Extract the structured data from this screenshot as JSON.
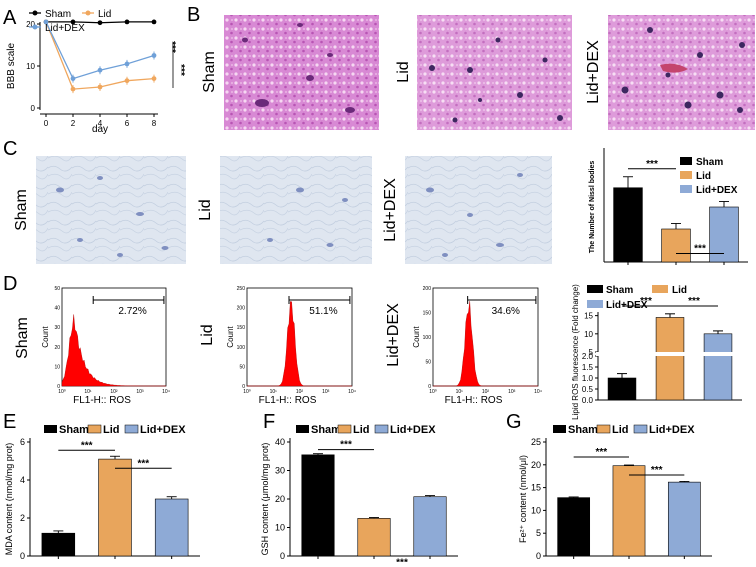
{
  "panels": {
    "A": "A",
    "B": "B",
    "C": "C",
    "D": "D",
    "E": "E",
    "F": "F",
    "G": "G"
  },
  "groups": {
    "sham": "Sham",
    "lid": "Lid",
    "dex": "Lid+DEX"
  },
  "colors": {
    "sham": "#000000",
    "lid": "#e8a55c",
    "dex": "#8eaad6",
    "bbb_sham": "#000000",
    "bbb_lid": "#f0a75e",
    "bbb_dex": "#6fa0d8",
    "flow": "#ff0000",
    "he": "#c870c4",
    "nissl": "#c9d6e8"
  },
  "flow": {
    "xlabel": "FL1-H:: ROS",
    "ylabel": "Count",
    "percents": [
      "2.72%",
      "51.1%",
      "34.6%"
    ],
    "yticks": [
      [
        "0",
        "10",
        "20",
        "30",
        "40",
        "50"
      ],
      [
        "0",
        "50",
        "100",
        "150",
        "200",
        "250"
      ],
      [
        "0",
        "50",
        "100",
        "150",
        "200"
      ]
    ],
    "xticks": [
      "10⁰",
      "10¹",
      "10²",
      "10³",
      "10⁴"
    ]
  },
  "significance": "***",
  "chart_data": [
    {
      "id": "A",
      "type": "line",
      "title": "",
      "xlabel": "day",
      "ylabel": "BBB scale",
      "x": [
        0,
        2,
        4,
        6,
        8
      ],
      "xlim": [
        0,
        8
      ],
      "ylim": [
        0,
        20
      ],
      "yticks": [
        0,
        10,
        20
      ],
      "series": [
        {
          "name": "Sham",
          "values": [
            20.5,
            20.5,
            20.3,
            20.5,
            20.5
          ]
        },
        {
          "name": "Lid",
          "values": [
            20.5,
            4.5,
            5.0,
            6.5,
            7.0
          ]
        },
        {
          "name": "Lid+DEX",
          "values": [
            20.5,
            7.0,
            9.0,
            10.5,
            12.5
          ]
        }
      ],
      "annotations": [
        "***",
        "***"
      ]
    },
    {
      "id": "C",
      "type": "bar",
      "title": "",
      "xlabel": "",
      "ylabel": "The Number of Nissl bodies",
      "categories": [
        "Sham",
        "Lid",
        "Lid+DEX"
      ],
      "values": [
        27,
        12,
        20
      ],
      "errors": [
        4,
        2,
        2
      ],
      "ylim": [
        0,
        40
      ],
      "annotations": [
        "***",
        "***"
      ]
    },
    {
      "id": "D",
      "type": "bar",
      "title": "",
      "xlabel": "",
      "ylabel": "Lipid ROS fluorescence (Fold change)",
      "categories": [
        "Sham",
        "Lid",
        "Lid+DEX"
      ],
      "values": [
        1.0,
        14.5,
        10.0
      ],
      "errors": [
        0.2,
        1.0,
        0.8
      ],
      "ylim": [
        0,
        16
      ],
      "axis_break": [
        2,
        5
      ],
      "yticks": [
        "0.0",
        "0.5",
        "1.0",
        "1.5",
        "2.0",
        "5",
        "10",
        "15"
      ],
      "annotations": [
        "***",
        "***"
      ]
    },
    {
      "id": "E",
      "type": "bar",
      "title": "",
      "xlabel": "",
      "ylabel": "MDA content (nmol/mg prot)",
      "categories": [
        "Sham",
        "Lid",
        "Lid+DEX"
      ],
      "values": [
        1.2,
        5.1,
        3.0
      ],
      "errors": [
        0.12,
        0.15,
        0.12
      ],
      "ylim": [
        0,
        6
      ],
      "yticks": [
        0,
        2,
        4,
        6
      ],
      "annotations": [
        "***",
        "***"
      ]
    },
    {
      "id": "F",
      "type": "bar",
      "title": "",
      "xlabel": "",
      "ylabel": "GSH content (μmol/mg prot)",
      "categories": [
        "Sham",
        "Lid",
        "Lid+DEX"
      ],
      "values": [
        35.5,
        13.2,
        20.8
      ],
      "errors": [
        0.4,
        0.3,
        0.4
      ],
      "ylim": [
        0,
        40
      ],
      "yticks": [
        0,
        10,
        20,
        30,
        40
      ],
      "annotations": [
        "***",
        "***"
      ]
    },
    {
      "id": "G",
      "type": "bar",
      "title": "",
      "xlabel": "",
      "ylabel": "Fe²⁺ content (nmol/μl)",
      "categories": [
        "Sham",
        "Lid",
        "Lid+DEX"
      ],
      "values": [
        12.8,
        19.8,
        16.2
      ],
      "errors": [
        0.15,
        0.15,
        0.15
      ],
      "ylim": [
        0,
        25
      ],
      "yticks": [
        0,
        5,
        10,
        15,
        20,
        25
      ],
      "annotations": [
        "***",
        "***"
      ]
    }
  ]
}
